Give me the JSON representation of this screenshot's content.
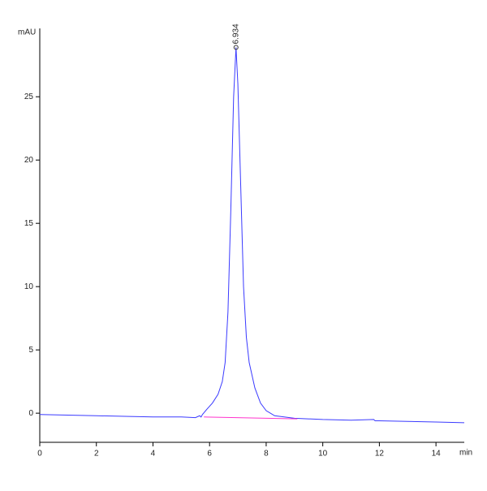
{
  "chart_data": {
    "type": "line",
    "y_label": "mAU",
    "x_label": "min",
    "xlim": [
      0,
      15
    ],
    "ylim": [
      -2.3,
      30.4
    ],
    "xticks": [
      0,
      2,
      4,
      6,
      8,
      10,
      12,
      14
    ],
    "yticks": [
      0,
      5,
      10,
      15,
      20,
      25
    ],
    "series": [
      {
        "color": "#3a3aff",
        "x": [
          0,
          1,
          2,
          3,
          4,
          5,
          5.5,
          5.65,
          5.7,
          5.75,
          5.9,
          6.1,
          6.3,
          6.45,
          6.55,
          6.65,
          6.75,
          6.85,
          6.934,
          7.0,
          7.1,
          7.2,
          7.3,
          7.4,
          7.6,
          7.8,
          8.0,
          8.3,
          9,
          10,
          11,
          11.8,
          11.85,
          12,
          13,
          14,
          15
        ],
        "values": [
          -0.1,
          -0.15,
          -0.2,
          -0.25,
          -0.3,
          -0.3,
          -0.35,
          -0.2,
          -0.3,
          -0.1,
          0.3,
          0.8,
          1.5,
          2.5,
          4,
          8,
          16,
          25,
          28.9,
          26,
          18,
          10,
          6,
          4,
          2,
          0.8,
          0.2,
          -0.2,
          -0.4,
          -0.5,
          -0.55,
          -0.5,
          -0.6,
          -0.6,
          -0.65,
          -0.7,
          -0.75
        ]
      },
      {
        "color": "#ff33cc",
        "x": [
          5.8,
          9.1
        ],
        "values": [
          -0.3,
          -0.45
        ]
      }
    ],
    "annotations": [
      {
        "label": "6.934",
        "x": 6.934,
        "y": 28.9
      }
    ]
  }
}
